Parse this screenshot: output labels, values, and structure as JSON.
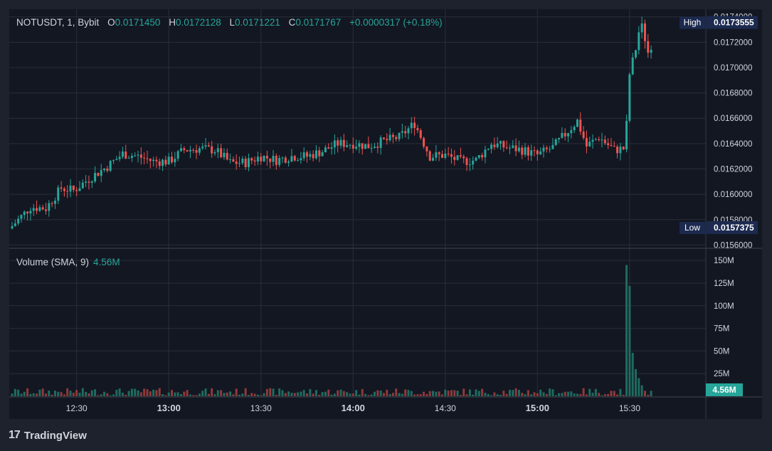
{
  "symbol": "NOTUSDT",
  "interval": "1",
  "exchange": "Bybit",
  "ohlc": {
    "o_label": "O",
    "o": "0.0171450",
    "h_label": "H",
    "h": "0.0172128",
    "l_label": "L",
    "l": "0.0171221",
    "c_label": "C",
    "c": "0.0171767",
    "change": "+0.0000317 (+0.18%)"
  },
  "volume_legend": {
    "label": "Volume (SMA, 9)",
    "value": "4.56M"
  },
  "brand": {
    "name": "TradingView",
    "logo": "17"
  },
  "markers": {
    "high_label": "High",
    "high_value": "0.0173555",
    "low_label": "Low",
    "low_value": "0.0157375",
    "volume_label": "4.56M"
  },
  "colors": {
    "up": "#26a69a",
    "down": "#ef5350",
    "background": "#131722",
    "frame": "#1e222d",
    "text": "#d1d4dc",
    "marker": "#2962ff"
  },
  "chart_data": [
    {
      "type": "candlestick",
      "title": "NOTUSDT, 1, Bybit",
      "ylim": [
        0.01558,
        0.01746
      ],
      "price_ticks": [
        "0.0174000",
        "0.0172000",
        "0.0170000",
        "0.0168000",
        "0.0166000",
        "0.0164000",
        "0.0162000",
        "0.0160000",
        "0.0158000",
        "0.0156000"
      ],
      "x_ticks": [
        "12:30",
        "13:00",
        "13:30",
        "14:00",
        "14:30",
        "15:00",
        "15:30"
      ],
      "x_ticks_bold": [
        "13:00",
        "14:00",
        "15:00"
      ],
      "x_range_minutes": [
        "12:09",
        "15:43"
      ],
      "close_anchor_points": [
        [
          "12:09",
          0.01575
        ],
        [
          "12:15",
          0.0159
        ],
        [
          "12:20",
          0.01589
        ],
        [
          "12:25",
          0.01605
        ],
        [
          "12:29",
          0.01603
        ],
        [
          "12:35",
          0.01614
        ],
        [
          "12:40",
          0.01622
        ],
        [
          "12:45",
          0.01632
        ],
        [
          "12:50",
          0.0163
        ],
        [
          "12:55",
          0.01626
        ],
        [
          "13:00",
          0.01626
        ],
        [
          "13:05",
          0.01635
        ],
        [
          "13:10",
          0.01636
        ],
        [
          "13:15",
          0.01635
        ],
        [
          "13:20",
          0.01625
        ],
        [
          "13:25",
          0.01625
        ],
        [
          "13:30",
          0.0163
        ],
        [
          "13:35",
          0.01627
        ],
        [
          "13:40",
          0.0163
        ],
        [
          "13:45",
          0.0163
        ],
        [
          "13:50",
          0.01634
        ],
        [
          "13:55",
          0.0164
        ],
        [
          "14:00",
          0.0164
        ],
        [
          "14:05",
          0.01638
        ],
        [
          "14:10",
          0.01642
        ],
        [
          "14:15",
          0.01645
        ],
        [
          "14:20",
          0.01656
        ],
        [
          "14:25",
          0.0163
        ],
        [
          "14:30",
          0.01631
        ],
        [
          "14:35",
          0.01626
        ],
        [
          "14:40",
          0.01627
        ],
        [
          "14:45",
          0.0164
        ],
        [
          "14:50",
          0.01637
        ],
        [
          "14:55",
          0.01635
        ],
        [
          "15:00",
          0.01631
        ],
        [
          "15:05",
          0.01637
        ],
        [
          "15:10",
          0.0165
        ],
        [
          "15:13",
          0.01658
        ],
        [
          "15:16",
          0.01638
        ],
        [
          "15:20",
          0.01645
        ],
        [
          "15:25",
          0.01635
        ],
        [
          "15:28",
          0.01636
        ],
        [
          "15:29",
          0.01655
        ],
        [
          "15:30",
          0.01695
        ],
        [
          "15:31",
          0.01705
        ],
        [
          "15:32",
          0.01715
        ],
        [
          "15:33",
          0.01728
        ],
        [
          "15:34",
          0.01732
        ],
        [
          "15:35",
          0.01723
        ],
        [
          "15:36",
          0.01712
        ],
        [
          "15:37",
          0.01718
        ]
      ],
      "high": 0.0173555,
      "low": 0.0157375,
      "last_close": 0.0171767
    },
    {
      "type": "bar",
      "title": "Volume (SMA, 9)",
      "ylim": [
        0,
        158
      ],
      "unit": "M",
      "y_ticks": [
        "150M",
        "125M",
        "100M",
        "75M",
        "50M",
        "25M"
      ],
      "spike_values": [
        [
          "15:28",
          1.5
        ],
        [
          "15:29",
          145
        ],
        [
          "15:30",
          122
        ],
        [
          "15:31",
          48
        ],
        [
          "15:32",
          30
        ],
        [
          "15:33",
          20
        ],
        [
          "15:34",
          12
        ],
        [
          "15:35",
          6
        ]
      ],
      "typical_range": [
        1,
        9
      ],
      "sma_last": 4.56
    }
  ]
}
